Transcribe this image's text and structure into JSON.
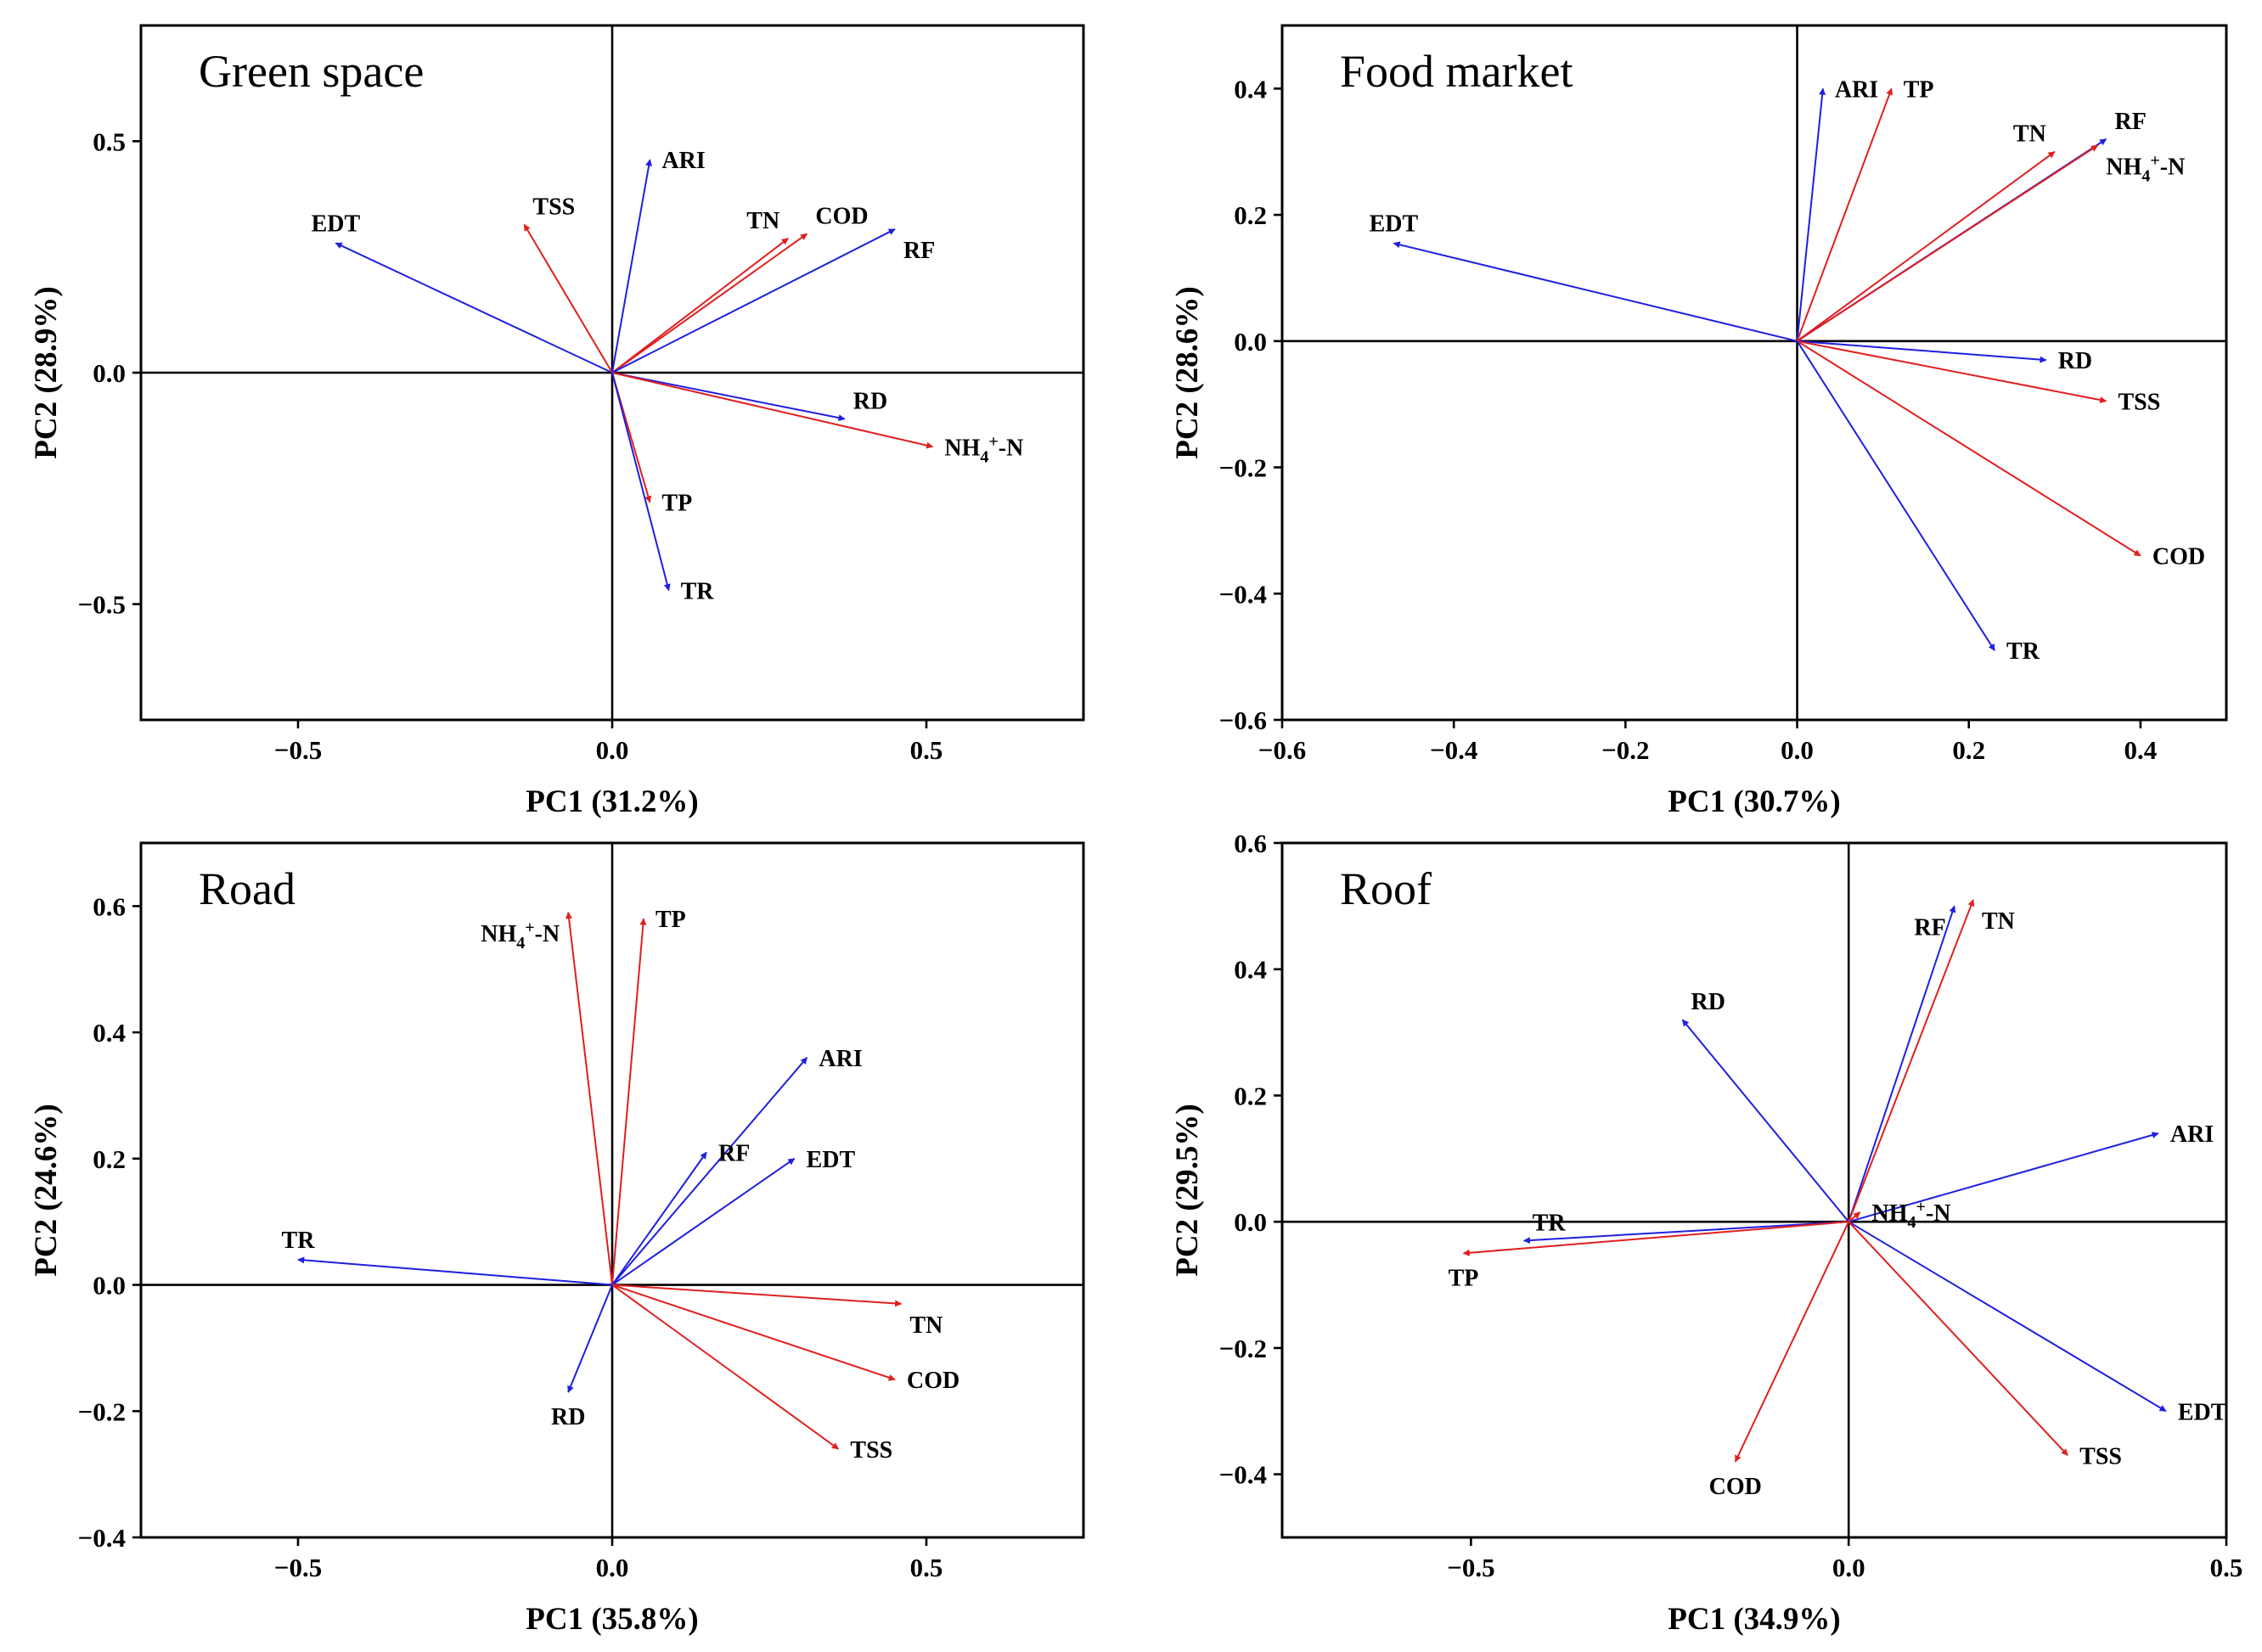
{
  "chart_data": [
    {
      "type": "biplot",
      "title": "Green space",
      "xlabel": "PC1 (31.2%)",
      "ylabel": "PC2 (28.9%)",
      "xlim": [
        -0.75,
        0.75
      ],
      "ylim": [
        -0.75,
        0.75
      ],
      "xticks": [
        -0.5,
        0.0,
        0.5
      ],
      "yticks": [
        -0.5,
        0.0,
        0.5
      ],
      "xtick_labels": [
        "−0.5",
        "0.0",
        "0.5"
      ],
      "ytick_labels": [
        "−0.5",
        "0.0",
        "0.5"
      ],
      "arrows": [
        {
          "name": "EDT",
          "x": -0.44,
          "y": 0.28,
          "color": "#1f1fe0",
          "label_pos": "above"
        },
        {
          "name": "TSS",
          "x": -0.14,
          "y": 0.32,
          "color": "#e01f1f",
          "label_pos": "above-right"
        },
        {
          "name": "ARI",
          "x": 0.06,
          "y": 0.46,
          "color": "#1f1fe0",
          "label_pos": "right"
        },
        {
          "name": "TN",
          "x": 0.28,
          "y": 0.29,
          "color": "#e01f1f",
          "label_pos": "above-left"
        },
        {
          "name": "COD",
          "x": 0.31,
          "y": 0.3,
          "color": "#e01f1f",
          "label_pos": "above-right"
        },
        {
          "name": "RF",
          "x": 0.45,
          "y": 0.31,
          "color": "#1f1fe0",
          "label_pos": "below-right"
        },
        {
          "name": "RD",
          "x": 0.37,
          "y": -0.1,
          "color": "#1f1fe0",
          "label_pos": "above-right"
        },
        {
          "name": "NH4+-N",
          "x": 0.51,
          "y": -0.16,
          "color": "#e01f1f",
          "label_pos": "right"
        },
        {
          "name": "TP",
          "x": 0.06,
          "y": -0.28,
          "color": "#e01f1f",
          "label_pos": "right"
        },
        {
          "name": "TR",
          "x": 0.09,
          "y": -0.47,
          "color": "#1f1fe0",
          "label_pos": "right"
        }
      ]
    },
    {
      "type": "biplot",
      "title": "Food market",
      "xlabel": "PC1 (30.7%)",
      "ylabel": "PC2 (28.6%)",
      "xlim": [
        -0.6,
        0.5
      ],
      "ylim": [
        -0.6,
        0.5
      ],
      "xticks": [
        -0.6,
        -0.4,
        -0.2,
        0.0,
        0.2,
        0.4
      ],
      "yticks": [
        -0.6,
        -0.4,
        -0.2,
        0.0,
        0.2,
        0.4
      ],
      "xtick_labels": [
        "−0.6",
        "−0.4",
        "−0.2",
        "0.0",
        "0.2",
        "0.4"
      ],
      "ytick_labels": [
        "−0.6",
        "−0.4",
        "−0.2",
        "0.0",
        "0.2",
        "0.4"
      ],
      "arrows": [
        {
          "name": "ARI",
          "x": 0.03,
          "y": 0.4,
          "color": "#1f1fe0",
          "label_pos": "right"
        },
        {
          "name": "TP",
          "x": 0.11,
          "y": 0.4,
          "color": "#e01f1f",
          "label_pos": "right"
        },
        {
          "name": "TN",
          "x": 0.3,
          "y": 0.3,
          "color": "#e01f1f",
          "label_pos": "above-left"
        },
        {
          "name": "RF",
          "x": 0.36,
          "y": 0.32,
          "color": "#1f1fe0",
          "label_pos": "above-right"
        },
        {
          "name": "NH4+-N",
          "x": 0.35,
          "y": 0.31,
          "color": "#e01f1f",
          "label_pos": "below-right"
        },
        {
          "name": "EDT",
          "x": -0.47,
          "y": 0.155,
          "color": "#1f1fe0",
          "label_pos": "above"
        },
        {
          "name": "RD",
          "x": 0.29,
          "y": -0.03,
          "color": "#1f1fe0",
          "label_pos": "right"
        },
        {
          "name": "TSS",
          "x": 0.36,
          "y": -0.095,
          "color": "#e01f1f",
          "label_pos": "right"
        },
        {
          "name": "COD",
          "x": 0.4,
          "y": -0.34,
          "color": "#e01f1f",
          "label_pos": "right"
        },
        {
          "name": "TR",
          "x": 0.23,
          "y": -0.49,
          "color": "#1f1fe0",
          "label_pos": "right"
        }
      ]
    },
    {
      "type": "biplot",
      "title": "Road",
      "xlabel": "PC1 (35.8%)",
      "ylabel": "PC2 (24.6%)",
      "xlim": [
        -0.75,
        0.75
      ],
      "ylim": [
        -0.4,
        0.7
      ],
      "xticks": [
        -0.5,
        0.0,
        0.5
      ],
      "yticks": [
        -0.4,
        -0.2,
        0.0,
        0.2,
        0.4,
        0.6
      ],
      "xtick_labels": [
        "−0.5",
        "0.0",
        "0.5"
      ],
      "ytick_labels": [
        "−0.4",
        "−0.2",
        "0.0",
        "0.2",
        "0.4",
        "0.6"
      ],
      "arrows": [
        {
          "name": "NH4+-N",
          "x": -0.07,
          "y": 0.59,
          "color": "#e01f1f",
          "label_pos": "below-left"
        },
        {
          "name": "TP",
          "x": 0.05,
          "y": 0.58,
          "color": "#e01f1f",
          "label_pos": "right"
        },
        {
          "name": "ARI",
          "x": 0.31,
          "y": 0.36,
          "color": "#1f1fe0",
          "label_pos": "right"
        },
        {
          "name": "RF",
          "x": 0.15,
          "y": 0.21,
          "color": "#1f1fe0",
          "label_pos": "right"
        },
        {
          "name": "EDT",
          "x": 0.29,
          "y": 0.2,
          "color": "#1f1fe0",
          "label_pos": "right"
        },
        {
          "name": "TR",
          "x": -0.5,
          "y": 0.04,
          "color": "#1f1fe0",
          "label_pos": "above"
        },
        {
          "name": "TN",
          "x": 0.46,
          "y": -0.03,
          "color": "#e01f1f",
          "label_pos": "below-right"
        },
        {
          "name": "COD",
          "x": 0.45,
          "y": -0.15,
          "color": "#e01f1f",
          "label_pos": "right"
        },
        {
          "name": "TSS",
          "x": 0.36,
          "y": -0.26,
          "color": "#e01f1f",
          "label_pos": "right"
        },
        {
          "name": "RD",
          "x": -0.07,
          "y": -0.17,
          "color": "#1f1fe0",
          "label_pos": "below"
        }
      ]
    },
    {
      "type": "biplot",
      "title": "Roof",
      "xlabel": "PC1 (34.9%)",
      "ylabel": "PC2 (29.5%)",
      "xlim": [
        -0.75,
        0.5
      ],
      "ylim": [
        -0.5,
        0.6
      ],
      "xticks": [
        -0.5,
        0.0,
        0.5
      ],
      "yticks": [
        -0.4,
        -0.2,
        0.0,
        0.2,
        0.4,
        0.6
      ],
      "xtick_labels": [
        "−0.5",
        "0.0",
        "0.5"
      ],
      "ytick_labels": [
        "−0.4",
        "−0.2",
        "0.0",
        "0.2",
        "0.4",
        "0.6"
      ],
      "arrows": [
        {
          "name": "RF",
          "x": 0.14,
          "y": 0.5,
          "color": "#1f1fe0",
          "label_pos": "below-left"
        },
        {
          "name": "TN",
          "x": 0.165,
          "y": 0.51,
          "color": "#e01f1f",
          "label_pos": "below-right"
        },
        {
          "name": "RD",
          "x": -0.22,
          "y": 0.32,
          "color": "#1f1fe0",
          "label_pos": "above-right"
        },
        {
          "name": "ARI",
          "x": 0.41,
          "y": 0.14,
          "color": "#1f1fe0",
          "label_pos": "right"
        },
        {
          "name": "NH4+-N",
          "x": 0.015,
          "y": 0.015,
          "color": "#e01f1f",
          "label_pos": "right"
        },
        {
          "name": "TR",
          "x": -0.43,
          "y": -0.03,
          "color": "#1f1fe0",
          "label_pos": "above-right"
        },
        {
          "name": "TP",
          "x": -0.51,
          "y": -0.05,
          "color": "#e01f1f",
          "label_pos": "below"
        },
        {
          "name": "EDT",
          "x": 0.42,
          "y": -0.3,
          "color": "#1f1fe0",
          "label_pos": "right"
        },
        {
          "name": "TSS",
          "x": 0.29,
          "y": -0.37,
          "color": "#e01f1f",
          "label_pos": "right"
        },
        {
          "name": "COD",
          "x": -0.15,
          "y": -0.38,
          "color": "#e01f1f",
          "label_pos": "below"
        }
      ]
    }
  ]
}
